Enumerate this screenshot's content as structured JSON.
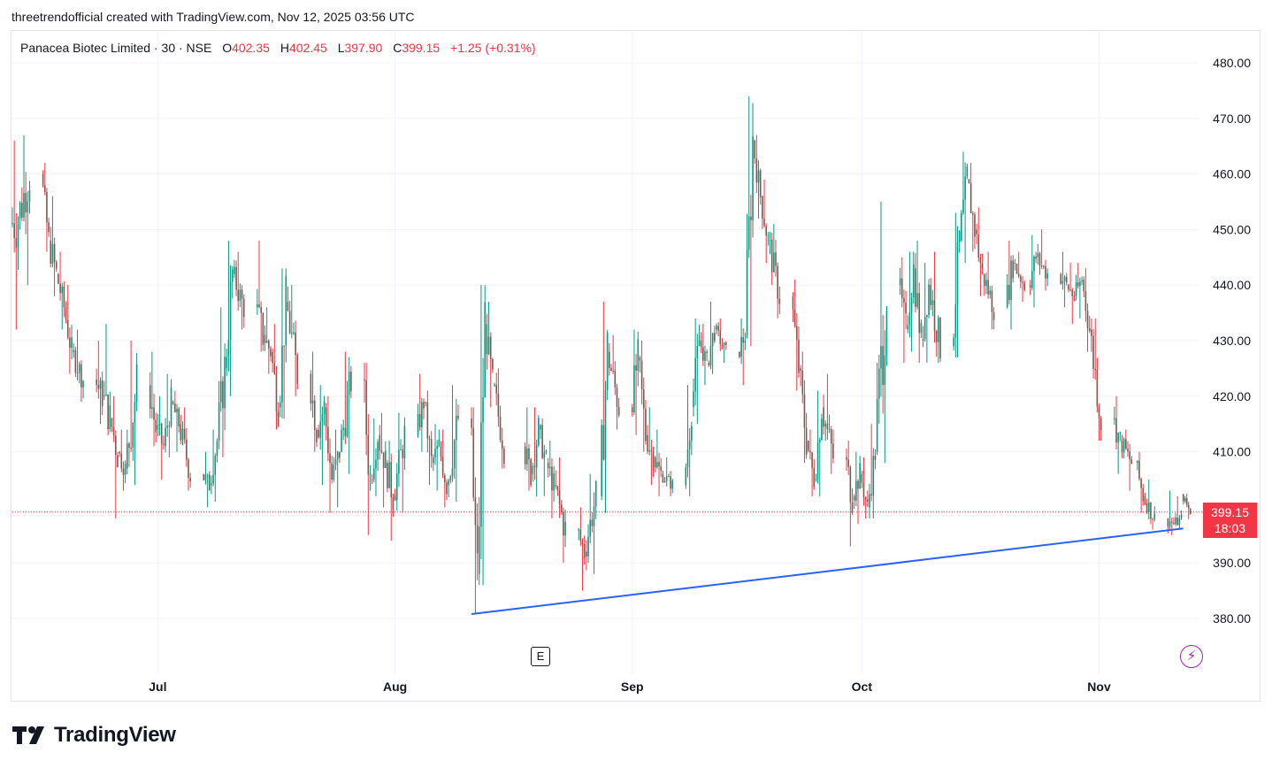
{
  "header": {
    "credit": "threetrendofficial created with TradingView.com, Nov 12, 2025 03:56 UTC"
  },
  "legend": {
    "symbol": "Panacea Biotec Limited · 30 · NSE",
    "open_label": "O",
    "open": "402.35",
    "high_label": "H",
    "high": "402.45",
    "low_label": "L",
    "low": "397.90",
    "close_label": "C",
    "close": "399.15",
    "change": "+1.25 (+0.31%)"
  },
  "price_tag": {
    "price": "399.15",
    "countdown": "18:03"
  },
  "markers": {
    "earnings": "E",
    "flash_icon": "lightning-icon"
  },
  "footer": {
    "logo_text": "TradingView"
  },
  "colors": {
    "up": "#089981",
    "down": "#f23645",
    "candle_wick": "#7a5a50",
    "trendline": "#2962ff",
    "grid": "#f0f3fa"
  },
  "chart_data": {
    "type": "candlestick",
    "yticks": [
      "480.00",
      "470.00",
      "460.00",
      "450.00",
      "440.00",
      "430.00",
      "420.00",
      "410.00",
      "390.00",
      "380.00"
    ],
    "ylim": [
      372,
      483
    ],
    "xticks": [
      "Jul",
      "Aug",
      "Sep",
      "Oct",
      "Nov"
    ],
    "xlim": [
      "2025-06-12",
      "2025-11-14"
    ],
    "last_price_line": 399.15,
    "trendline": {
      "from": [
        "2025-08-11",
        380.8
      ],
      "to": [
        "2025-11-12",
        396.2
      ]
    },
    "series": [
      {
        "values": [
          [
            "2025-06-12",
            451,
            466,
            432,
            452
          ],
          [
            "2025-06-13",
            452,
            467,
            440,
            460
          ],
          [
            "2025-06-16",
            460,
            462,
            446,
            448
          ],
          [
            "2025-06-17",
            448,
            456,
            438,
            442
          ],
          [
            "2025-06-18",
            442,
            446,
            432,
            436
          ],
          [
            "2025-06-19",
            436,
            440,
            424,
            428
          ],
          [
            "2025-06-20",
            428,
            432,
            419,
            423
          ],
          [
            "2025-06-23",
            423,
            430,
            415,
            420
          ],
          [
            "2025-06-24",
            420,
            433,
            413,
            416
          ],
          [
            "2025-06-25",
            416,
            420,
            398,
            410
          ],
          [
            "2025-06-26",
            410,
            414,
            403,
            407
          ],
          [
            "2025-06-27",
            407,
            430,
            404,
            422
          ],
          [
            "2025-06-30",
            422,
            428,
            411,
            414
          ],
          [
            "2025-07-01",
            414,
            420,
            405,
            411
          ],
          [
            "2025-07-02",
            411,
            424,
            409,
            419
          ],
          [
            "2025-07-03",
            419,
            421,
            410,
            415
          ],
          [
            "2025-07-04",
            415,
            418,
            403,
            406
          ],
          [
            "2025-07-07",
            406,
            410,
            400,
            404
          ],
          [
            "2025-07-08",
            404,
            414,
            401,
            412
          ],
          [
            "2025-07-09",
            412,
            436,
            409,
            425
          ],
          [
            "2025-07-10",
            425,
            448,
            420,
            442
          ],
          [
            "2025-07-11",
            442,
            446,
            432,
            436
          ],
          [
            "2025-07-14",
            436,
            448,
            428,
            431
          ],
          [
            "2025-07-15",
            431,
            436,
            424,
            428
          ],
          [
            "2025-07-16",
            428,
            433,
            414,
            418
          ],
          [
            "2025-07-17",
            418,
            443,
            416,
            437
          ],
          [
            "2025-07-18",
            437,
            440,
            420,
            424
          ],
          [
            "2025-07-21",
            424,
            428,
            410,
            414
          ],
          [
            "2025-07-22",
            414,
            422,
            404,
            418
          ],
          [
            "2025-07-23",
            418,
            420,
            399,
            405
          ],
          [
            "2025-07-24",
            405,
            414,
            400,
            410
          ],
          [
            "2025-07-25",
            410,
            428,
            406,
            423
          ],
          [
            "2025-07-28",
            423,
            426,
            395,
            405
          ],
          [
            "2025-07-29",
            405,
            416,
            402,
            413
          ],
          [
            "2025-07-30",
            413,
            417,
            400,
            408
          ],
          [
            "2025-07-31",
            408,
            412,
            394,
            402
          ],
          [
            "2025-08-01",
            402,
            417,
            399,
            413
          ],
          [
            "2025-08-04",
            413,
            424,
            410,
            419
          ],
          [
            "2025-08-05",
            419,
            421,
            404,
            408
          ],
          [
            "2025-08-06",
            408,
            415,
            403,
            411
          ],
          [
            "2025-08-07",
            411,
            414,
            400,
            404
          ],
          [
            "2025-08-08",
            404,
            422,
            401,
            416
          ],
          [
            "2025-08-11",
            416,
            418,
            381,
            388
          ],
          [
            "2025-08-12",
            388,
            440,
            386,
            433
          ],
          [
            "2025-08-13",
            433,
            437,
            418,
            422
          ],
          [
            "2025-08-14",
            422,
            425,
            407,
            411
          ],
          [
            "2025-08-18",
            411,
            418,
            403,
            406
          ],
          [
            "2025-08-19",
            406,
            418,
            402,
            414
          ],
          [
            "2025-08-20",
            414,
            416,
            402,
            408
          ],
          [
            "2025-08-21",
            408,
            412,
            398,
            404
          ],
          [
            "2025-08-22",
            404,
            409,
            390,
            396
          ],
          [
            "2025-08-25",
            396,
            400,
            385,
            392
          ],
          [
            "2025-08-26",
            392,
            406,
            388,
            402
          ],
          [
            "2025-08-28",
            402,
            437,
            399,
            428
          ],
          [
            "2025-08-29",
            428,
            431,
            414,
            418
          ],
          [
            "2025-09-01",
            418,
            432,
            413,
            427
          ],
          [
            "2025-09-02",
            427,
            430,
            410,
            413
          ],
          [
            "2025-09-03",
            413,
            418,
            404,
            409
          ],
          [
            "2025-09-04",
            409,
            414,
            402,
            406
          ],
          [
            "2025-09-05",
            406,
            409,
            402,
            404
          ],
          [
            "2025-09-08",
            404,
            422,
            402,
            418
          ],
          [
            "2025-09-09",
            418,
            434,
            415,
            430
          ],
          [
            "2025-09-10",
            430,
            433,
            422,
            426
          ],
          [
            "2025-09-11",
            426,
            437,
            424,
            432
          ],
          [
            "2025-09-12",
            432,
            434,
            426,
            428
          ],
          [
            "2025-09-15",
            428,
            434,
            422,
            431
          ],
          [
            "2025-09-16",
            431,
            474,
            429,
            466
          ],
          [
            "2025-09-17",
            466,
            467,
            452,
            456
          ],
          [
            "2025-09-18",
            456,
            459,
            444,
            448
          ],
          [
            "2025-09-19",
            448,
            451,
            434,
            438
          ],
          [
            "2025-09-22",
            438,
            441,
            421,
            425
          ],
          [
            "2025-09-23",
            425,
            428,
            408,
            412
          ],
          [
            "2025-09-24",
            412,
            414,
            402,
            405
          ],
          [
            "2025-09-25",
            405,
            421,
            402,
            418
          ],
          [
            "2025-09-26",
            418,
            424,
            406,
            409
          ],
          [
            "2025-09-29",
            409,
            412,
            393,
            402
          ],
          [
            "2025-09-30",
            402,
            410,
            397,
            406
          ],
          [
            "2025-10-01",
            406,
            409,
            398,
            400
          ],
          [
            "2025-10-02",
            400,
            415,
            398,
            410
          ],
          [
            "2025-10-03",
            410,
            455,
            408,
            440
          ],
          [
            "2025-10-06",
            440,
            445,
            426,
            432
          ],
          [
            "2025-10-07",
            432,
            446,
            428,
            443
          ],
          [
            "2025-10-08",
            443,
            448,
            426,
            430
          ],
          [
            "2025-10-09",
            430,
            444,
            426,
            440
          ],
          [
            "2025-10-10",
            440,
            446,
            426,
            429
          ],
          [
            "2025-10-13",
            429,
            453,
            427,
            448
          ],
          [
            "2025-10-14",
            448,
            464,
            444,
            459
          ],
          [
            "2025-10-15",
            459,
            462,
            446,
            450
          ],
          [
            "2025-10-16",
            450,
            454,
            438,
            442
          ],
          [
            "2025-10-17",
            442,
            446,
            432,
            436
          ],
          [
            "2025-10-20",
            436,
            448,
            432,
            444
          ],
          [
            "2025-10-21",
            444,
            446,
            437,
            440
          ],
          [
            "2025-10-23",
            440,
            449,
            436,
            445
          ],
          [
            "2025-10-24",
            445,
            450,
            439,
            442
          ],
          [
            "2025-10-27",
            442,
            446,
            436,
            440
          ],
          [
            "2025-10-28",
            440,
            444,
            433,
            438
          ],
          [
            "2025-10-29",
            438,
            444,
            434,
            441
          ],
          [
            "2025-10-30",
            441,
            443,
            428,
            432
          ],
          [
            "2025-10-31",
            432,
            434,
            412,
            416
          ],
          [
            "2025-11-03",
            416,
            420,
            406,
            412
          ],
          [
            "2025-11-04",
            412,
            414,
            403,
            408
          ],
          [
            "2025-11-06",
            408,
            410,
            399,
            402
          ],
          [
            "2025-11-07",
            402,
            405,
            396,
            398
          ],
          [
            "2025-11-10",
            398,
            403,
            395,
            397
          ],
          [
            "2025-11-11",
            397,
            402,
            396,
            397.9
          ],
          [
            "2025-11-12",
            402.35,
            402.45,
            397.9,
            399.15
          ]
        ]
      }
    ]
  }
}
